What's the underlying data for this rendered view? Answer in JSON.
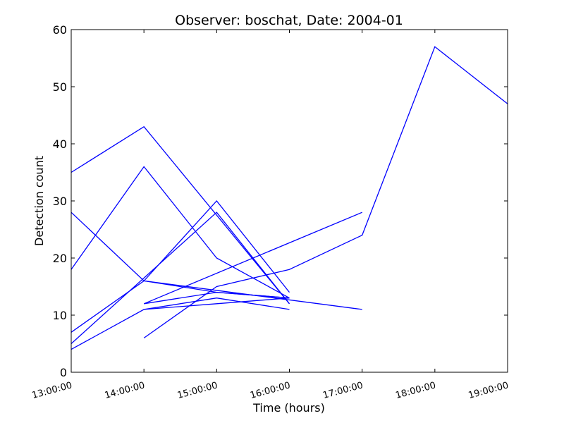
{
  "chart_data": {
    "type": "line",
    "title": "Observer: boschat, Date: 2004-01",
    "xlabel": "Time (hours)",
    "ylabel": "Detection count",
    "xlim": [
      "13:00:00",
      "19:00:00"
    ],
    "ylim": [
      0,
      60
    ],
    "grid": false,
    "line_color": "#0000ff",
    "x_ticks": [
      "13:00:00",
      "14:00:00",
      "15:00:00",
      "16:00:00",
      "17:00:00",
      "18:00:00",
      "19:00:00"
    ],
    "y_ticks": [
      "0",
      "10",
      "20",
      "30",
      "40",
      "50",
      "60"
    ],
    "series": [
      {
        "x": [
          "13:00:00",
          "14:00:00",
          "16:00:00"
        ],
        "y": [
          35,
          43,
          12
        ]
      },
      {
        "x": [
          "13:00:00",
          "14:00:00",
          "15:00:00",
          "16:00:00"
        ],
        "y": [
          18,
          36,
          20,
          13
        ]
      },
      {
        "x": [
          "13:00:00",
          "14:00:00",
          "17:00:00"
        ],
        "y": [
          28,
          16,
          11
        ]
      },
      {
        "x": [
          "13:00:00",
          "14:00:00",
          "15:00:00",
          "16:00:00"
        ],
        "y": [
          7,
          16,
          30,
          14
        ]
      },
      {
        "x": [
          "13:00:00",
          "15:00:00",
          "16:00:00"
        ],
        "y": [
          5,
          28,
          12
        ]
      },
      {
        "x": [
          "13:00:00",
          "14:00:00",
          "15:00:00",
          "16:00:00"
        ],
        "y": [
          4,
          11,
          13,
          11
        ]
      },
      {
        "x": [
          "14:00:00",
          "15:00:00",
          "16:00:00",
          "17:00:00",
          "18:00:00",
          "19:00:00"
        ],
        "y": [
          6,
          15,
          18,
          24,
          57,
          47
        ]
      },
      {
        "x": [
          "14:00:00",
          "15:00:00",
          "16:00:00"
        ],
        "y": [
          12,
          14,
          13
        ]
      },
      {
        "x": [
          "14:00:00",
          "15:00:00",
          "16:00:00"
        ],
        "y": [
          16,
          14,
          13
        ]
      },
      {
        "x": [
          "14:00:00",
          "15:00:00",
          "16:00:00"
        ],
        "y": [
          11,
          12,
          13
        ]
      },
      {
        "x": [
          "14:00:00",
          "17:00:00"
        ],
        "y": [
          12,
          28
        ]
      }
    ]
  }
}
